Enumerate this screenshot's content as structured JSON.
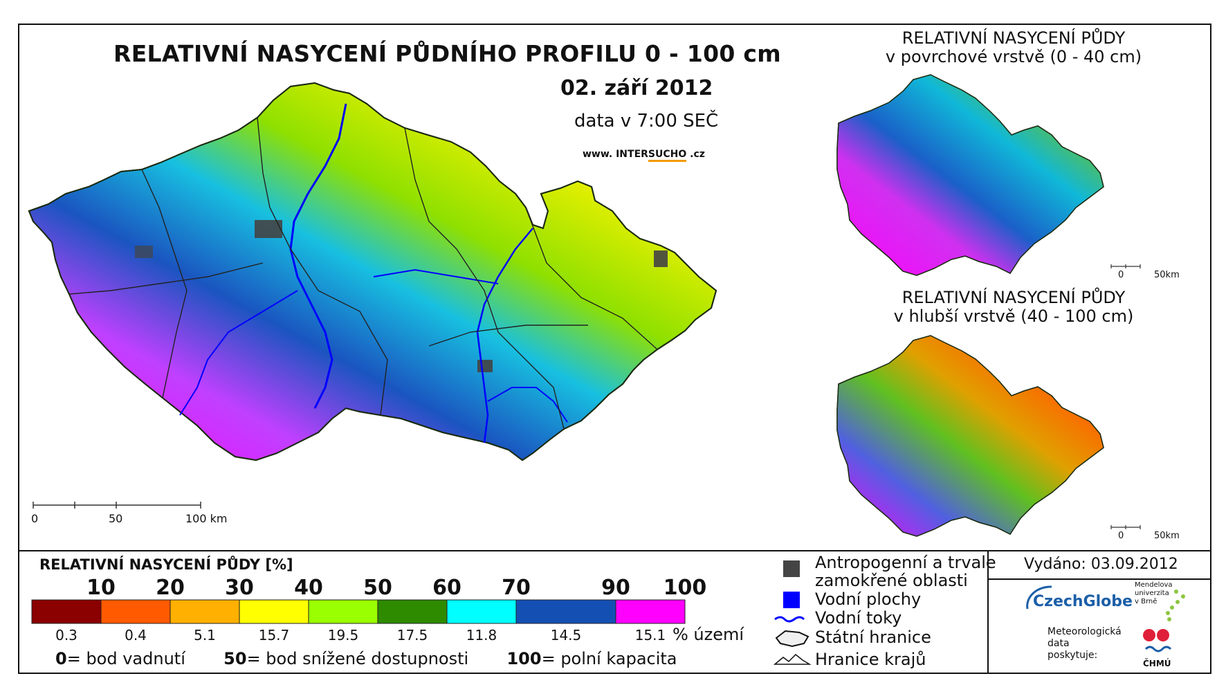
{
  "header": {
    "title": "RELATIVNÍ NASYCENÍ PŮDNÍHO PROFILU 0 - 100 cm",
    "date": "02. září 2012",
    "time": "data v 7:00 SEČ",
    "website_prefix": "www. INTER",
    "website_mid": "SUCHO",
    "website_suffix": " .cz"
  },
  "maps": {
    "main_scale": [
      "0",
      "50",
      "100 km"
    ],
    "surface_title_1": "RELATIVNÍ NASYCENÍ PŮDY",
    "surface_title_2": "v povrchové vrstvě (0 - 40 cm)",
    "deep_title_1": "RELATIVNÍ NASYCENÍ PŮDY",
    "deep_title_2": "v hlubší vrstvě (40 - 100 cm)",
    "small_scale": [
      "0",
      "50km"
    ]
  },
  "legend": {
    "title": "RELATIVNÍ NASYCENÍ PŮDY [%]",
    "ticks": [
      "10",
      "20",
      "30",
      "40",
      "50",
      "60",
      "70",
      "90",
      "100"
    ],
    "colors": [
      "#8b0000",
      "#ff5a00",
      "#ffb000",
      "#ffff00",
      "#9aff00",
      "#2e8b00",
      "#00ffff",
      "#1450b4",
      "#ff00ff"
    ],
    "percents": [
      "0.3",
      "0.4",
      "5.1",
      "15.7",
      "19.5",
      "17.5",
      "11.8",
      "14.5",
      "15.1"
    ],
    "percent_unit": "% území",
    "note_0_val": "0",
    "note_0_text": "= bod vadnutí",
    "note_50_val": "50",
    "note_50_text": "= bod snížené dostupnosti",
    "note_100_val": "100",
    "note_100_text": "= polní kapacita"
  },
  "symbols": {
    "anthropogenic_1": "Antropogenní a trvale",
    "anthropogenic_2": "zamokřené oblasti",
    "water_bodies": "Vodní plochy",
    "rivers": "Vodní toky",
    "state_border": "Státní hranice",
    "region_border": "Hranice krajů",
    "anthropogenic_color": "#444444",
    "water_color": "#0000ff"
  },
  "footer": {
    "issued": "Vydáno: 03.09.2012",
    "czechglobe": "CzechGlobe",
    "mendel_1": "Mendelova",
    "mendel_2": "univerzita",
    "mendel_3": "v Brně",
    "meteo_1": "Meteorologická",
    "meteo_2": "data",
    "meteo_3": "poskytuje:",
    "chmu": "ČHMÚ"
  }
}
